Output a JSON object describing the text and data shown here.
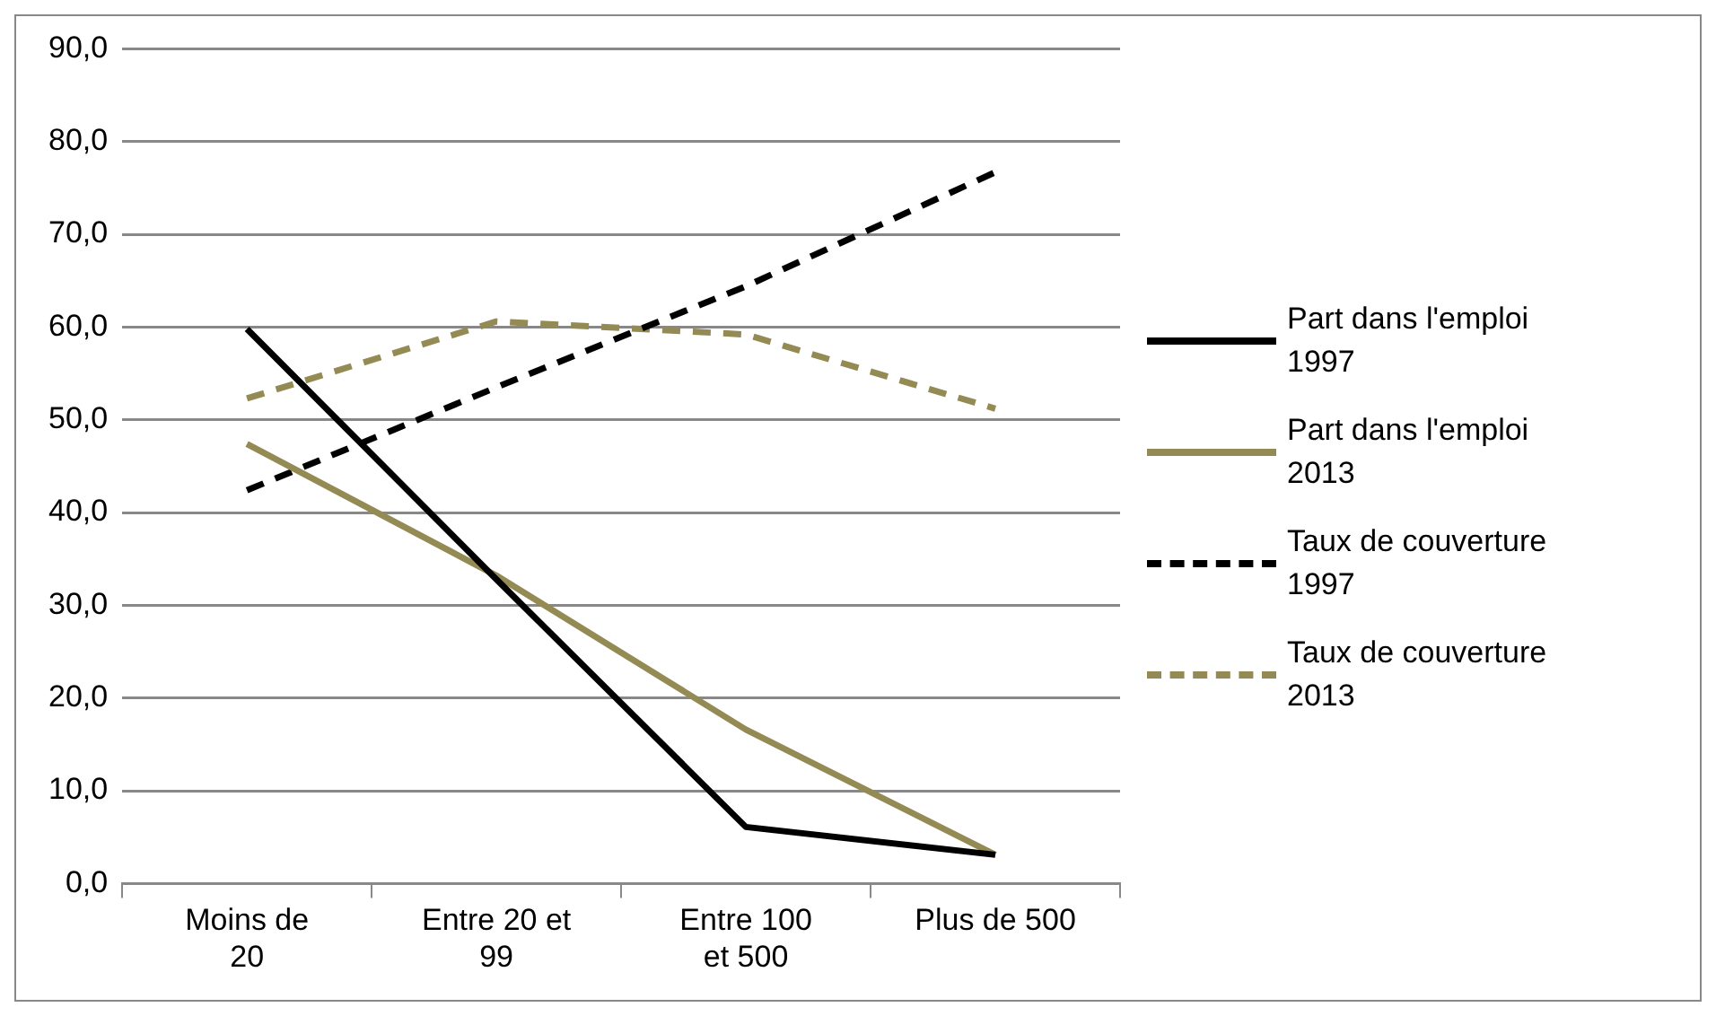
{
  "chart_data": {
    "type": "line",
    "categories": [
      "Moins de 20",
      "Entre 20 et 99",
      "Entre 100 et 500",
      "Plus de 500"
    ],
    "series": [
      {
        "name": "Part dans l'emploi 1997",
        "color": "#000000",
        "line_style": "solid",
        "values": [
          59.8,
          32.8,
          6.1,
          3.1
        ]
      },
      {
        "name": "Part dans l'emploi 2013",
        "color": "#948a54",
        "line_style": "solid",
        "values": [
          47.4,
          33.2,
          16.6,
          3.1
        ]
      },
      {
        "name": "Taux de couverture 1997",
        "color": "#000000",
        "line_style": "dashed",
        "values": [
          42.4,
          53.5,
          64.4,
          76.7
        ]
      },
      {
        "name": "Taux de couverture 2013",
        "color": "#948a54",
        "line_style": "dashed",
        "values": [
          52.3,
          60.6,
          59.2,
          51.2
        ]
      }
    ],
    "ylim": [
      0,
      90
    ],
    "yticks": [
      {
        "value": 0,
        "label": "0,0"
      },
      {
        "value": 10,
        "label": "10,0"
      },
      {
        "value": 20,
        "label": "20,0"
      },
      {
        "value": 30,
        "label": "30,0"
      },
      {
        "value": 40,
        "label": "40,0"
      },
      {
        "value": 50,
        "label": "50,0"
      },
      {
        "value": 60,
        "label": "60,0"
      },
      {
        "value": 70,
        "label": "70,0"
      },
      {
        "value": 80,
        "label": "80,0"
      },
      {
        "value": 90,
        "label": "90,0"
      }
    ],
    "grid": "y",
    "legend": "right",
    "marker": "none"
  }
}
